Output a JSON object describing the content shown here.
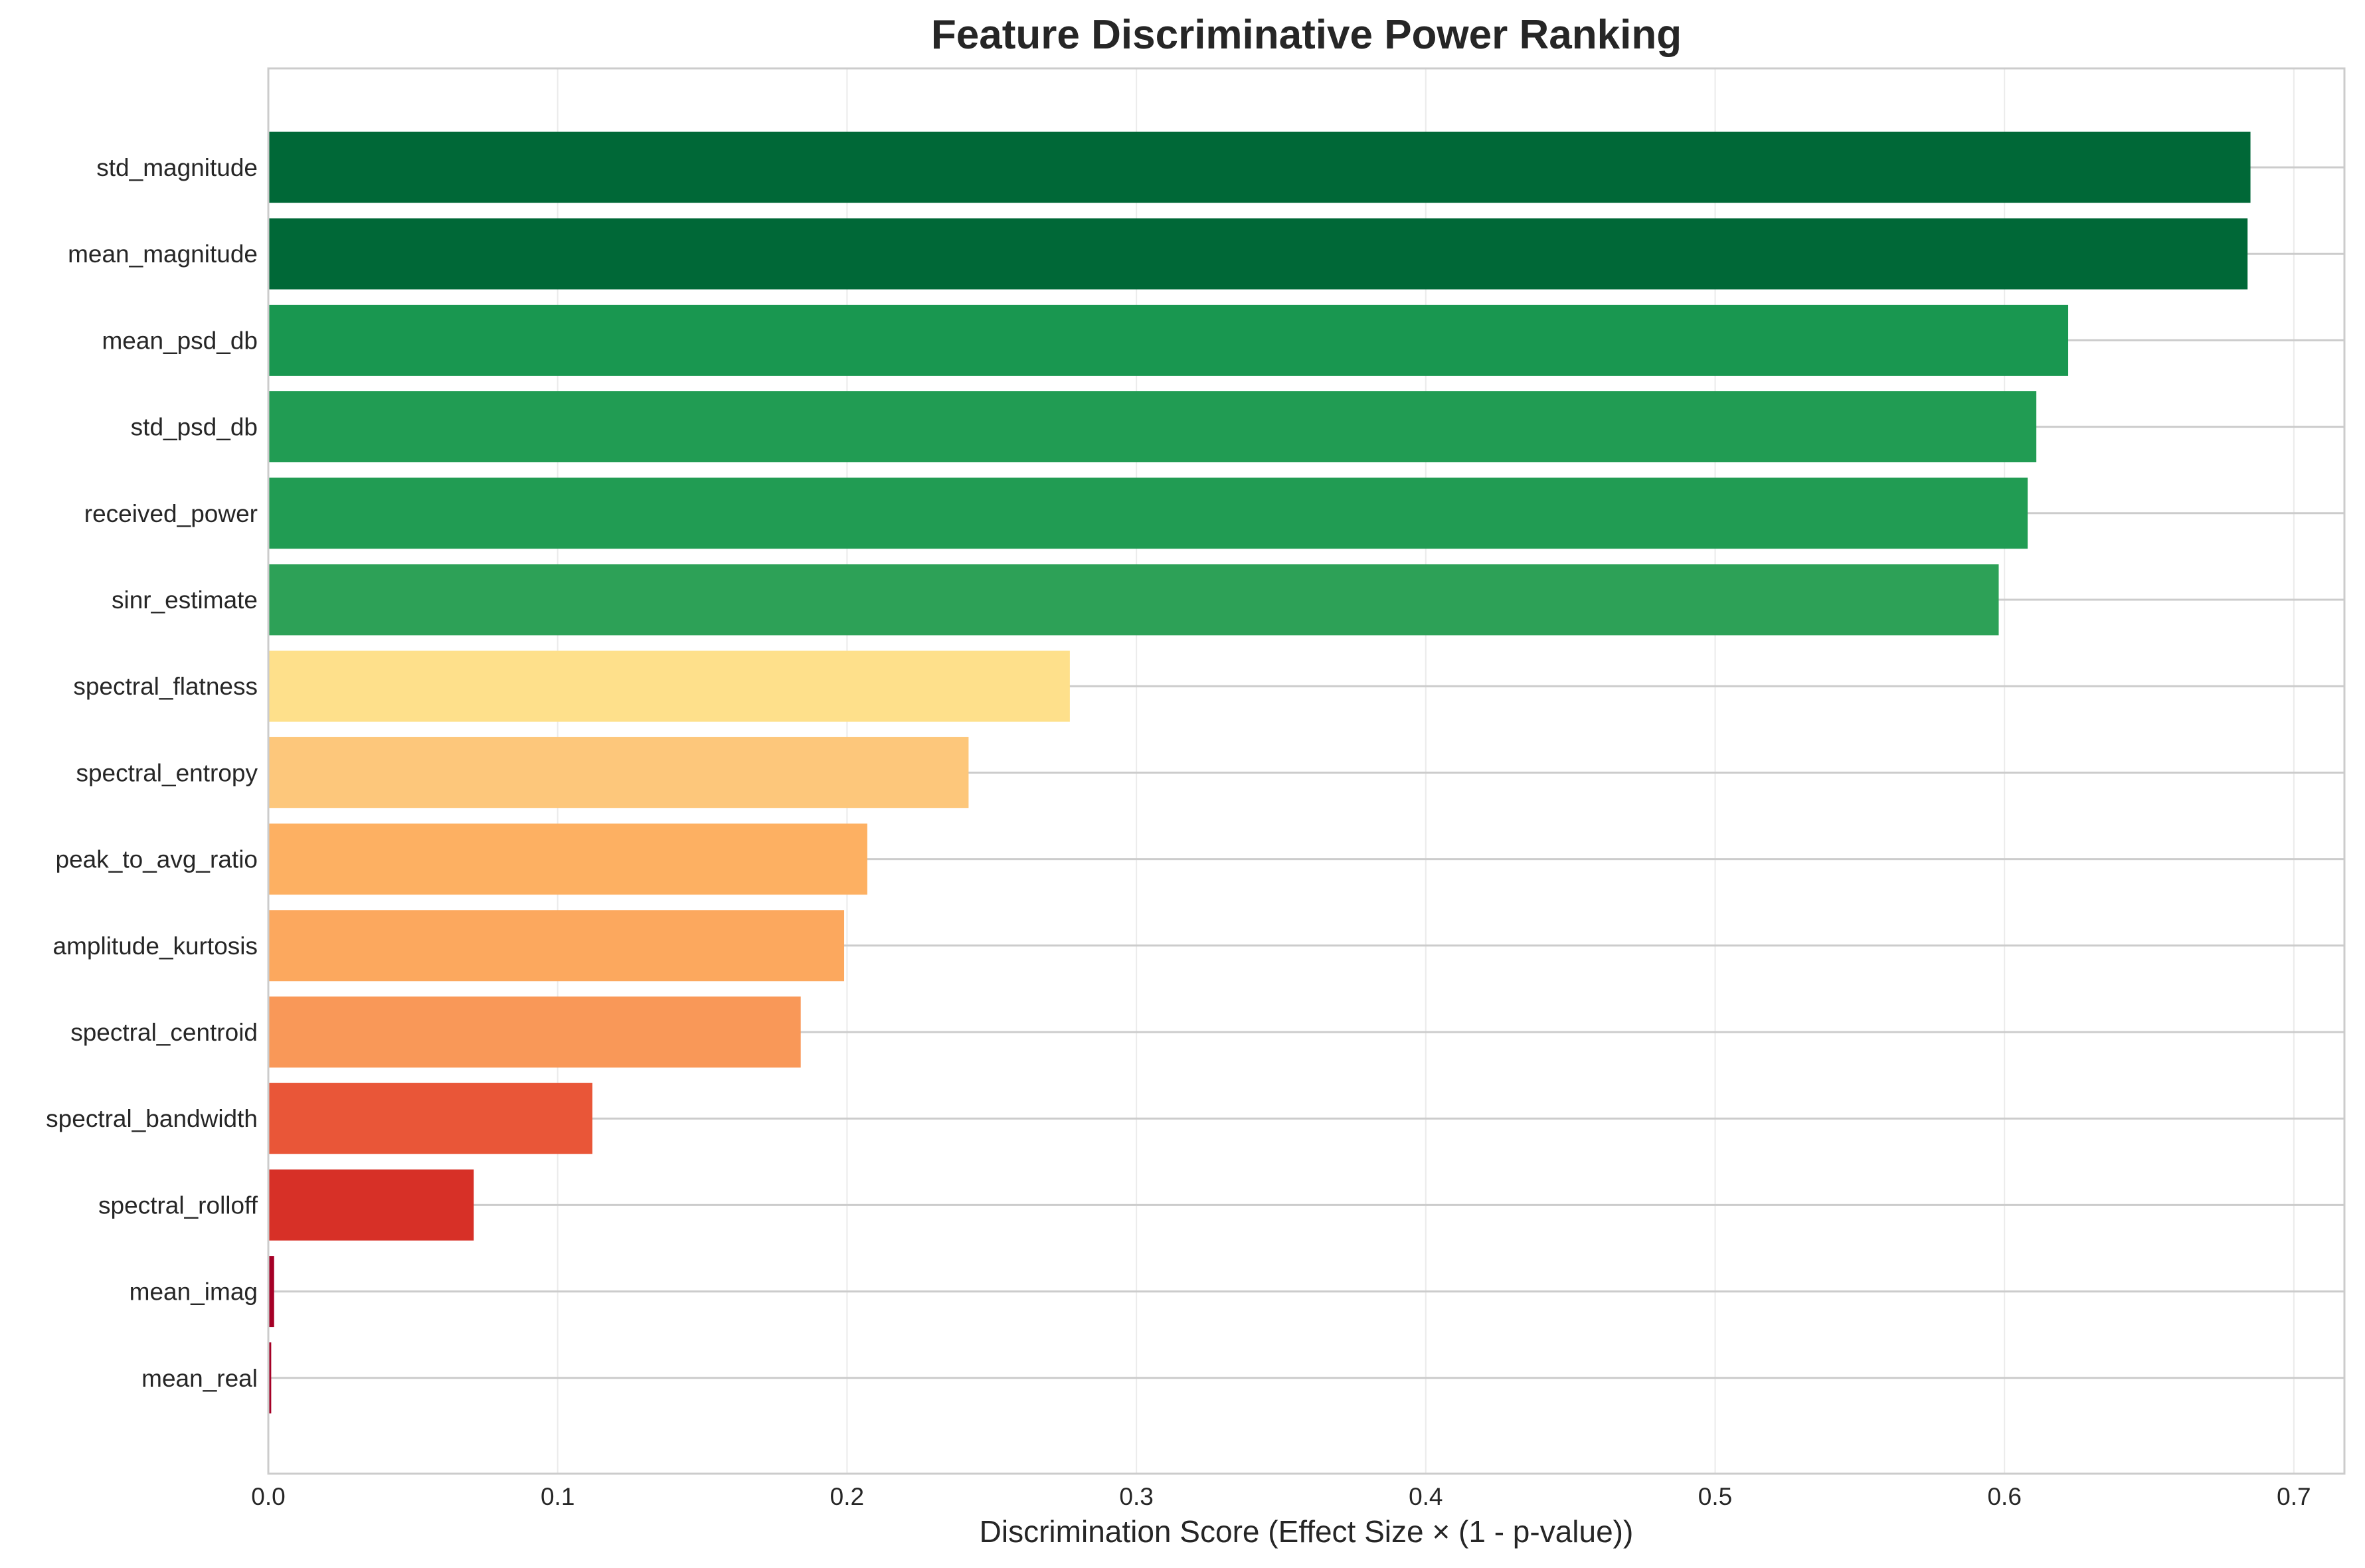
{
  "chart_data": {
    "type": "bar",
    "orientation": "horizontal",
    "title": "Feature Discriminative Power Ranking",
    "xlabel": "Discrimination Score (Effect Size × (1 - p-value))",
    "ylabel": "",
    "xlim": [
      0,
      0.72
    ],
    "xticks": [
      "0.0",
      "0.1",
      "0.2",
      "0.3",
      "0.4",
      "0.5",
      "0.6",
      "0.7"
    ],
    "grid": true,
    "categories": [
      "std_magnitude",
      "mean_magnitude",
      "mean_psd_db",
      "std_psd_db",
      "received_power",
      "sinr_estimate",
      "spectral_flatness",
      "spectral_entropy",
      "peak_to_avg_ratio",
      "amplitude_kurtosis",
      "spectral_centroid",
      "spectral_bandwidth",
      "spectral_rolloff",
      "mean_imag",
      "mean_real"
    ],
    "values": [
      0.685,
      0.684,
      0.622,
      0.611,
      0.608,
      0.598,
      0.277,
      0.242,
      0.207,
      0.199,
      0.184,
      0.112,
      0.071,
      0.002,
      0.001
    ],
    "colors": [
      "#006837",
      "#006837",
      "#199750",
      "#219c53",
      "#219c53",
      "#2da157",
      "#fee08b",
      "#fdc77b",
      "#fdb062",
      "#fca85e",
      "#f99858",
      "#e95638",
      "#d73027",
      "#a50026",
      "#a50026"
    ],
    "legend": "none"
  }
}
